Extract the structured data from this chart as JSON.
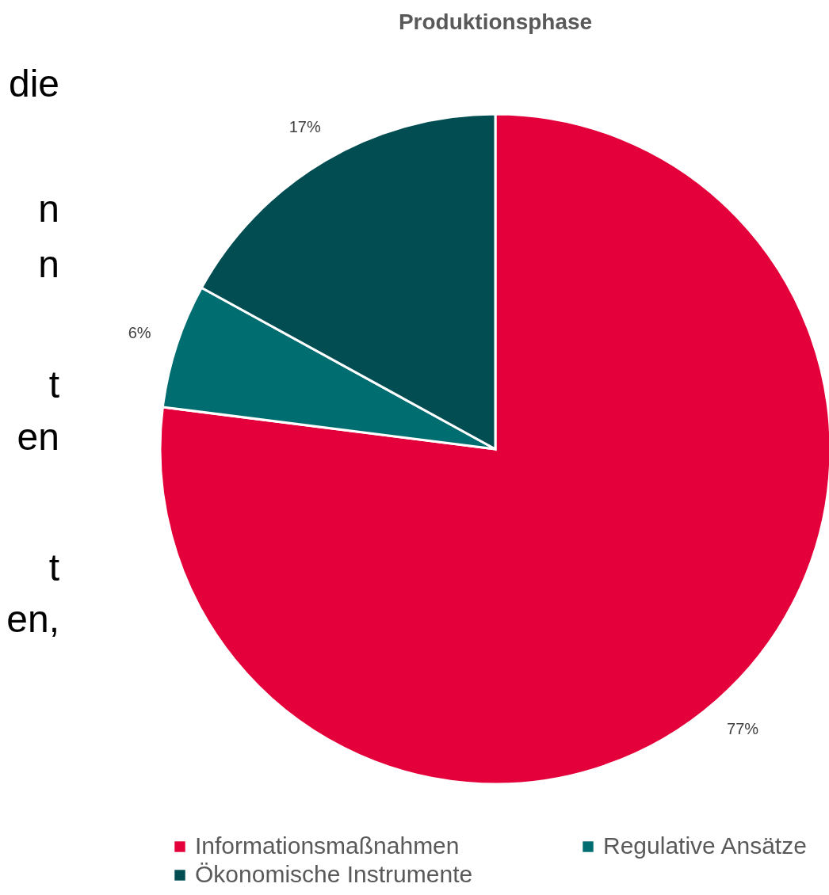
{
  "chart_data": {
    "type": "pie",
    "title": "Produktionsphase",
    "categories": [
      "Informationsmaßnahmen",
      "Regulative Ansätze",
      "Ökonomische Instrumente"
    ],
    "values": [
      77,
      6,
      17
    ],
    "colors": [
      "#e4003a",
      "#006d70",
      "#024d52"
    ],
    "value_labels": [
      "77%",
      "6%",
      "17%"
    ],
    "legend": "bottom",
    "annotations": [
      "die",
      "n",
      "n",
      "t",
      "en",
      "t",
      "en,"
    ]
  }
}
